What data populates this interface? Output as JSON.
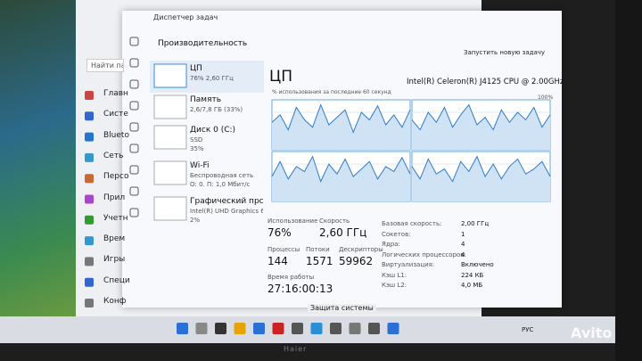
{
  "background_window": {
    "search": "Найти пар",
    "nav": [
      "Главн",
      "Систе",
      "Blueto",
      "Сеть",
      "Персо",
      "Прил",
      "Учетн",
      "Врем",
      "Игры",
      "Специ",
      "Конф"
    ]
  },
  "task_manager": {
    "title": "Диспетчер задач",
    "section": "Производительность",
    "run_task": "Запустить новую задачу",
    "sidebar": [
      {
        "name": "ЦП",
        "details": [
          "76% 2,60 ГГц"
        ]
      },
      {
        "name": "Память",
        "details": [
          "2,6/7,8 ГБ (33%)"
        ]
      },
      {
        "name": "Диск 0 (C:)",
        "details": [
          "SSD",
          "35%"
        ]
      },
      {
        "name": "Wi-Fi",
        "details": [
          "Беспроводная сеть",
          "О: 0. П: 1,0 Мбит/с"
        ]
      },
      {
        "name": "Графический прс",
        "details": [
          "Intel(R) UHD Graphics 6",
          "2%"
        ]
      }
    ],
    "cpu": {
      "heading": "ЦП",
      "model": "Intel(R) Celeron(R) J4125 CPU @ 2.00GHz",
      "graph_label": "% использования за последние 60 секунд",
      "graph_max": "100%",
      "graphs": [
        [
          55,
          70,
          40,
          85,
          60,
          45,
          90,
          50,
          65,
          80,
          35,
          75,
          60,
          88,
          50,
          70,
          45,
          80
        ],
        [
          60,
          40,
          75,
          55,
          85,
          45,
          70,
          90,
          50,
          65,
          40,
          80,
          55,
          75,
          60,
          85,
          45,
          70
        ],
        [
          50,
          80,
          45,
          70,
          60,
          90,
          40,
          75,
          55,
          85,
          50,
          65,
          80,
          45,
          70,
          60,
          88,
          55
        ],
        [
          70,
          45,
          85,
          55,
          65,
          40,
          80,
          60,
          90,
          50,
          75,
          45,
          70,
          85,
          55,
          65,
          80,
          50
        ]
      ],
      "stats": [
        {
          "label": "Использование",
          "value": "76%"
        },
        {
          "label": "Скорость",
          "value": "2,60 ГГц"
        },
        {
          "label": "Процессы",
          "value": "144"
        },
        {
          "label": "Потоки",
          "value": "1571"
        },
        {
          "label": "Дескрипторы",
          "value": "59962"
        }
      ],
      "uptime": {
        "label": "Время работы",
        "value": "27:16:00:13"
      },
      "specs": [
        {
          "label": "Базовая скорость:",
          "value": "2,00 ГГц"
        },
        {
          "label": "Сокетов:",
          "value": "1"
        },
        {
          "label": "Ядра:",
          "value": "4"
        },
        {
          "label": "Логических процессоров:",
          "value": "4"
        },
        {
          "label": "Виртуализация:",
          "value": "Включено"
        },
        {
          "label": "Кэш L1:",
          "value": "224 КБ"
        },
        {
          "label": "Кэш L2:",
          "value": "4,0 МБ"
        }
      ]
    }
  },
  "taskbar": {
    "tooltip": "Защита системы",
    "language": "РУС"
  },
  "bezel_brand": "Haier",
  "watermark": "Avito"
}
